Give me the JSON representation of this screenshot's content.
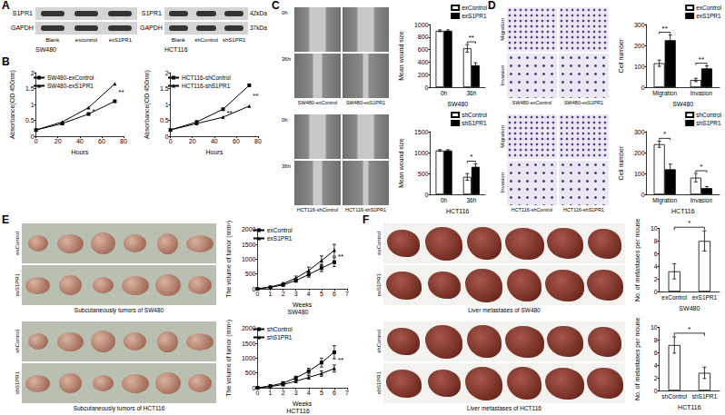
{
  "panel_labels": [
    "A",
    "B",
    "C",
    "D",
    "E",
    "F"
  ],
  "blots": [
    {
      "rows": [
        "S1PR1",
        "GAPDH"
      ],
      "lanes": [
        "Blank",
        "excontrol",
        "exS1PR1"
      ],
      "cell_line": "SW480"
    },
    {
      "rows": [
        "S1PR1",
        "GAPDH"
      ],
      "lanes": [
        "Blank",
        "shControl",
        "shS1PR1"
      ],
      "cell_line": "HCT116",
      "sizes": [
        "42kDa",
        "37kDa"
      ]
    }
  ],
  "photos": [
    {
      "rows": [
        "0h",
        "36h"
      ],
      "columns": [
        "SW480-exControl",
        "SW480-exS1PR1"
      ]
    },
    {
      "rows": [
        "0h",
        "36h"
      ],
      "columns": [
        "HCT116-shControl",
        "HCT116-shS1PR1"
      ]
    },
    {
      "rows": [
        "Migration",
        "Invasion"
      ],
      "columns": [
        "SW480-exControl",
        "SW480-exS1PR1"
      ]
    },
    {
      "rows": [
        "Migration",
        "Invasion"
      ],
      "columns": [
        "HCT116-shControl",
        "HCT116-shS1PR1"
      ]
    },
    {
      "rows": [
        "exControl",
        "exS1PR1"
      ],
      "caption": "Subcutaneously tumors of SW480"
    },
    {
      "rows": [
        "shControl",
        "shS1PR1"
      ],
      "caption": "Subcutaneously tumors of HCT116"
    },
    {
      "rows": [
        "exControl",
        "exS1PR1"
      ],
      "caption": "Liver metastases of SW480"
    },
    {
      "rows": [
        "shControl",
        "shS1PR1"
      ],
      "caption": "Liver metastases of HCT116"
    }
  ],
  "chart_data": [
    {
      "type": "line",
      "xlabel": "Hours",
      "ylabel": "Absorbance(OD 450nm)",
      "x": [
        0,
        24,
        48,
        72
      ],
      "xlim": [
        0,
        80
      ],
      "xticks": [
        0,
        20,
        40,
        60,
        80
      ],
      "ylim": [
        0,
        2
      ],
      "yticks": [
        0,
        0.5,
        1,
        1.5,
        2
      ],
      "grid": false,
      "legend": "upper left",
      "series": [
        {
          "name": "SW480-exControl",
          "color": "#000000",
          "marker": "square",
          "values": [
            0.2,
            0.4,
            0.7,
            1.1
          ]
        },
        {
          "name": "SW480-exS1PR1",
          "color": "#000000",
          "marker": "triangle",
          "values": [
            0.2,
            0.45,
            0.9,
            1.65
          ]
        }
      ],
      "annotations": [
        {
          "x": 48,
          "text": "*"
        },
        {
          "x": 72,
          "text": "**"
        }
      ]
    },
    {
      "type": "line",
      "xlabel": "Hours",
      "ylabel": "Absorbance(OD 450nm)",
      "x": [
        0,
        24,
        48,
        72
      ],
      "xlim": [
        0,
        80
      ],
      "xticks": [
        0,
        20,
        40,
        60,
        80
      ],
      "ylim": [
        0,
        2
      ],
      "yticks": [
        0,
        0.5,
        1,
        1.5,
        2
      ],
      "grid": false,
      "legend": "upper left",
      "series": [
        {
          "name": "HCT116-shControl",
          "color": "#000000",
          "marker": "square",
          "values": [
            0.2,
            0.45,
            0.85,
            1.6
          ]
        },
        {
          "name": "HCT116-shS1PR1",
          "color": "#000000",
          "marker": "triangle",
          "values": [
            0.2,
            0.4,
            0.6,
            0.95
          ]
        }
      ],
      "annotations": [
        {
          "x": 48,
          "text": "**"
        },
        {
          "x": 72,
          "text": "**"
        }
      ]
    },
    {
      "type": "bar",
      "xlabel": "SW480",
      "ylabel": "Mean wound size",
      "categories": [
        "0h",
        "36h"
      ],
      "ylim": [
        0,
        1000
      ],
      "yticks": [
        0,
        200,
        400,
        600,
        800,
        1000
      ],
      "grid": false,
      "legend": "upper right",
      "series": [
        {
          "name": "exControl",
          "color": "#ffffff",
          "values": [
            900,
            620
          ],
          "errors": [
            15,
            60
          ]
        },
        {
          "name": "exS1PR1",
          "color": "#000000",
          "values": [
            900,
            350
          ],
          "errors": [
            15,
            40
          ]
        }
      ],
      "annotations": [
        {
          "category": "36h",
          "text": "**"
        }
      ]
    },
    {
      "type": "bar",
      "xlabel": "HCT116",
      "ylabel": "Mean wound size",
      "categories": [
        "0h",
        "36h"
      ],
      "ylim": [
        0,
        1500
      ],
      "yticks": [
        0,
        500,
        1000,
        1500
      ],
      "grid": false,
      "legend": "upper right",
      "series": [
        {
          "name": "shControl",
          "color": "#ffffff",
          "values": [
            1050,
            420
          ],
          "errors": [
            20,
            80
          ]
        },
        {
          "name": "shS1PR1",
          "color": "#000000",
          "values": [
            1050,
            660
          ],
          "errors": [
            20,
            70
          ]
        }
      ],
      "annotations": [
        {
          "category": "36h",
          "text": "*"
        }
      ]
    },
    {
      "type": "bar",
      "xlabel": "SW480",
      "ylabel": "Cell number",
      "categories": [
        "Migration",
        "Invasion"
      ],
      "ylim": [
        0,
        300
      ],
      "yticks": [
        0,
        100,
        200,
        300
      ],
      "grid": false,
      "legend": "upper right",
      "series": [
        {
          "name": "exControl",
          "color": "#ffffff",
          "values": [
            115,
            35
          ],
          "errors": [
            15,
            8
          ]
        },
        {
          "name": "exS1PR1",
          "color": "#000000",
          "values": [
            225,
            90
          ],
          "errors": [
            25,
            12
          ]
        }
      ],
      "annotations": [
        {
          "category": "Migration",
          "text": "**"
        },
        {
          "category": "Invasion",
          "text": "**"
        }
      ]
    },
    {
      "type": "bar",
      "xlabel": "HCT116",
      "ylabel": "Cell number",
      "categories": [
        "Migration",
        "Invasion"
      ],
      "ylim": [
        0,
        300
      ],
      "yticks": [
        0,
        100,
        200,
        300
      ],
      "grid": false,
      "legend": "upper right",
      "series": [
        {
          "name": "shControl",
          "color": "#ffffff",
          "values": [
            240,
            80
          ],
          "errors": [
            15,
            20
          ]
        },
        {
          "name": "shS1PR1",
          "color": "#000000",
          "values": [
            120,
            30
          ],
          "errors": [
            25,
            8
          ]
        }
      ],
      "annotations": [
        {
          "category": "Migration",
          "text": "*"
        },
        {
          "category": "Invasion",
          "text": "*"
        }
      ]
    },
    {
      "type": "line",
      "xlabel": "Weeks",
      "subtitle": "SW480",
      "ylabel": "The volume of tumor (mm³)",
      "x": [
        0,
        1,
        2,
        3,
        4,
        5,
        6
      ],
      "xlim": [
        0,
        7
      ],
      "xticks": [
        0,
        1,
        2,
        3,
        4,
        5,
        6,
        7
      ],
      "ylim": [
        0,
        2000
      ],
      "yticks": [
        0,
        500,
        1000,
        1500,
        2000
      ],
      "grid": false,
      "legend": "upper left",
      "series": [
        {
          "name": "exControl",
          "color": "#000000",
          "marker": "square",
          "values": [
            0,
            50,
            130,
            280,
            480,
            700,
            900
          ],
          "errors": [
            0,
            10,
            30,
            60,
            90,
            120,
            150
          ]
        },
        {
          "name": "exS1PR1",
          "color": "#000000",
          "marker": "triangle",
          "values": [
            0,
            60,
            170,
            360,
            620,
            950,
            1300
          ],
          "errors": [
            0,
            15,
            40,
            70,
            110,
            160,
            200
          ]
        }
      ],
      "annotations": [
        {
          "x": 6,
          "text": "**"
        }
      ]
    },
    {
      "type": "line",
      "xlabel": "Weeks",
      "subtitle": "HCT116",
      "ylabel": "The volume of tumor (mm³)",
      "x": [
        0,
        1,
        2,
        3,
        4,
        5,
        6
      ],
      "xlim": [
        0,
        7
      ],
      "xticks": [
        0,
        1,
        2,
        3,
        4,
        5,
        6,
        7
      ],
      "ylim": [
        0,
        2000
      ],
      "yticks": [
        0,
        500,
        1000,
        1500,
        2000
      ],
      "grid": false,
      "legend": "upper left",
      "series": [
        {
          "name": "shControl",
          "color": "#000000",
          "marker": "square",
          "values": [
            0,
            60,
            160,
            330,
            560,
            850,
            1200
          ],
          "errors": [
            0,
            15,
            35,
            60,
            100,
            150,
            220
          ]
        },
        {
          "name": "shS1PR1",
          "color": "#000000",
          "marker": "triangle",
          "values": [
            0,
            40,
            110,
            220,
            350,
            480,
            650
          ],
          "errors": [
            0,
            10,
            25,
            40,
            60,
            90,
            120
          ]
        }
      ],
      "annotations": [
        {
          "x": 6,
          "text": "**"
        }
      ]
    },
    {
      "type": "bar",
      "xlabel": "SW480",
      "ylabel": "No. of metastases per mouse",
      "categories": [
        "exControl",
        "exS1PR1"
      ],
      "values": [
        3.2,
        8
      ],
      "errors": [
        1.2,
        1.6
      ],
      "colors": [
        "#ffffff",
        "#ffffff"
      ],
      "ylim": [
        0,
        10
      ],
      "yticks": [
        0,
        2,
        4,
        6,
        8,
        10
      ],
      "grid": false,
      "annotations": [
        {
          "text": "*"
        }
      ]
    },
    {
      "type": "bar",
      "xlabel": "HCT116",
      "ylabel": "No. of metastases per mouse",
      "categories": [
        "shControl",
        "shS1PR1"
      ],
      "values": [
        7.2,
        2.8
      ],
      "errors": [
        1.3,
        0.9
      ],
      "colors": [
        "#ffffff",
        "#ffffff"
      ],
      "ylim": [
        0,
        10
      ],
      "yticks": [
        0,
        2,
        4,
        6,
        8,
        10
      ],
      "grid": false,
      "annotations": [
        {
          "text": "*"
        }
      ]
    }
  ]
}
